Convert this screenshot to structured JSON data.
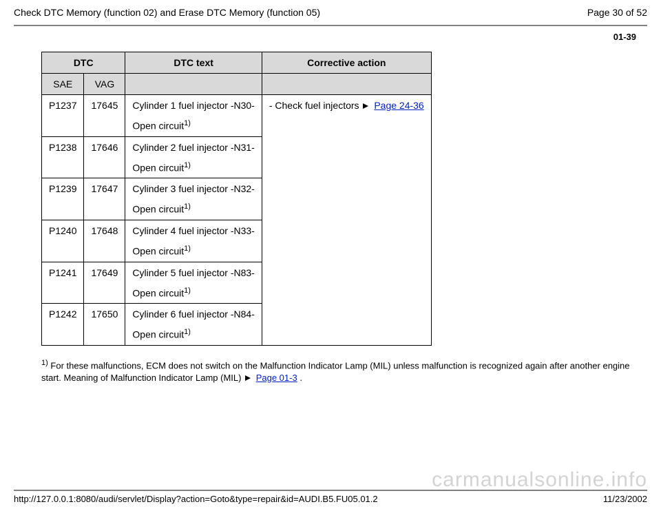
{
  "header": {
    "title": "Check DTC Memory (function 02) and Erase DTC Memory (function 05)",
    "page_label": "Page 30 of 52"
  },
  "section_number": "01-39",
  "table": {
    "head": {
      "dtc": "DTC",
      "dtc_text": "DTC text",
      "corrective": "Corrective action",
      "sae": "SAE",
      "vag": "VAG"
    },
    "action_prefix": "- Check fuel injectors ",
    "action_link": "Page 24-36",
    "rows": [
      {
        "sae": "P1237",
        "vag": "17645",
        "text_main": "Cylinder 1 fuel injector -N30-",
        "text_sub": "Open circuit",
        "sup": "1)"
      },
      {
        "sae": "P1238",
        "vag": "17646",
        "text_main": "Cylinder 2 fuel injector -N31-",
        "text_sub": "Open circuit",
        "sup": "1)"
      },
      {
        "sae": "P1239",
        "vag": "17647",
        "text_main": "Cylinder 3 fuel injector -N32-",
        "text_sub": "Open circuit",
        "sup": "1)"
      },
      {
        "sae": "P1240",
        "vag": "17648",
        "text_main": "Cylinder 4 fuel injector -N33-",
        "text_sub": "Open circuit",
        "sup": "1)"
      },
      {
        "sae": "P1241",
        "vag": "17649",
        "text_main": "Cylinder 5 fuel injector -N83-",
        "text_sub": "Open circuit",
        "sup": "1)"
      },
      {
        "sae": "P1242",
        "vag": "17650",
        "text_main": "Cylinder 6 fuel injector -N84-",
        "text_sub": "Open circuit",
        "sup": "1)"
      }
    ]
  },
  "footnote": {
    "sup": "1)",
    "text_a": " For these malfunctions, ECM does not switch on the Malfunction Indicator Lamp (MIL) unless malfunction is recognized again after another engine start. Meaning of Malfunction Indicator Lamp (MIL) ",
    "link": "Page 01-3",
    "text_b": " ."
  },
  "watermark": "carmanualsonline.info",
  "footer": {
    "url": "http://127.0.0.1:8080/audi/servlet/Display?action=Goto&type=repair&id=AUDI.B5.FU05.01.2",
    "date": "11/23/2002"
  }
}
